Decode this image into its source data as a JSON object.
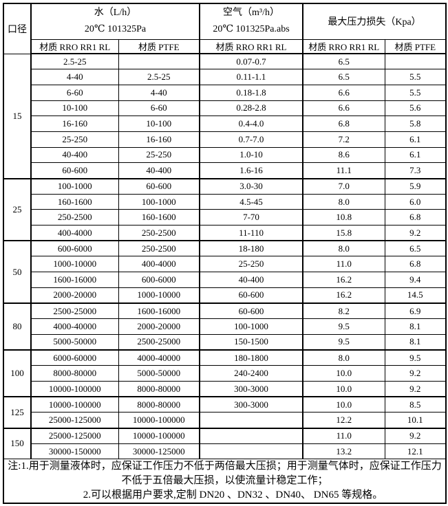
{
  "page": {
    "background_color": "#ffffff",
    "line_color": "#000000",
    "text_color": "#000000"
  },
  "table": {
    "header": {
      "diameter_label": "口径",
      "water": {
        "title": "水（L/h）",
        "subtitle": "20℃ 101325Pa"
      },
      "air": {
        "title": "空气（m³/h）",
        "subtitle": "20℃ 101325Pa.abs"
      },
      "pressure": {
        "title": "最大压力损失（Kpa）"
      },
      "materials": [
        "材质 RRO RR1 RL",
        "材质 PTFE",
        "材质 RRO RR1 RL",
        "材质 RRO RR1 RL",
        "材质 PTFE"
      ]
    },
    "sections": [
      {
        "dn": "15",
        "rows": [
          [
            "2.5-25",
            "",
            "0.07-0.7",
            "6.5",
            ""
          ],
          [
            "4-40",
            "2.5-25",
            "0.11-1.1",
            "6.5",
            "5.5"
          ],
          [
            "6-60",
            "4-40",
            "0.18-1.8",
            "6.6",
            "5.5"
          ],
          [
            "10-100",
            "6-60",
            "0.28-2.8",
            "6.6",
            "5.6"
          ],
          [
            "16-160",
            "10-100",
            "0.4-4.0",
            "6.8",
            "5.8"
          ],
          [
            "25-250",
            "16-160",
            "0.7-7.0",
            "7.2",
            "6.1"
          ],
          [
            "40-400",
            "25-250",
            "1.0-10",
            "8.6",
            "6.1"
          ],
          [
            "60-600",
            "40-400",
            "1.6-16",
            "11.1",
            "7.3"
          ]
        ]
      },
      {
        "dn": "25",
        "rows": [
          [
            "100-1000",
            "60-600",
            "3.0-30",
            "7.0",
            "5.9"
          ],
          [
            "160-1600",
            "100-1000",
            "4.5-45",
            "8.0",
            "6.0"
          ],
          [
            "250-2500",
            "160-1600",
            "7-70",
            "10.8",
            "6.8"
          ],
          [
            "400-4000",
            "250-2500",
            "11-110",
            "15.8",
            "9.2"
          ]
        ]
      },
      {
        "dn": "50",
        "rows": [
          [
            "600-6000",
            "250-2500",
            "18-180",
            "8.0",
            "6.5"
          ],
          [
            "1000-10000",
            "400-4000",
            "25-250",
            "11.0",
            "6.8"
          ],
          [
            "1600-16000",
            "600-6000",
            "40-400",
            "16.2",
            "9.4"
          ],
          [
            "2000-20000",
            "1000-10000",
            "60-600",
            "16.2",
            "14.5"
          ]
        ]
      },
      {
        "dn": "80",
        "rows": [
          [
            "2500-25000",
            "1600-16000",
            "60-600",
            "8.2",
            "6.9"
          ],
          [
            "4000-40000",
            "2000-20000",
            "100-1000",
            "9.5",
            "8.1"
          ],
          [
            "5000-50000",
            "2500-25000",
            "150-1500",
            "9.5",
            "8.1"
          ]
        ]
      },
      {
        "dn": "100",
        "rows": [
          [
            "6000-60000",
            "4000-40000",
            "180-1800",
            "8.0",
            "9.5"
          ],
          [
            "8000-80000",
            "5000-50000",
            "240-2400",
            "10.0",
            "9.2"
          ],
          [
            "10000-100000",
            "8000-80000",
            "300-3000",
            "10.0",
            "9.2"
          ]
        ]
      },
      {
        "dn": "125",
        "rows": [
          [
            "10000-100000",
            "8000-80000",
            "300-3000",
            "10.0",
            "8.5"
          ],
          [
            "25000-125000",
            "10000-100000",
            "",
            "12.2",
            "10.1"
          ]
        ]
      },
      {
        "dn": "150",
        "rows": [
          [
            "25000-125000",
            "10000-100000",
            "",
            "11.0",
            "9.2"
          ],
          [
            "30000-150000",
            "30000-125000",
            "",
            "13.2",
            "12.1"
          ]
        ]
      }
    ],
    "notes": [
      "注:1.用于测量液体时，应保证工作压力不低于两倍最大压损；用于测量气体时，应保证工作压力",
      "不低于五倍最大压损，以使流量计稳定工作；",
      "2.可以根据用户要求,定制 DN20 、DN32 、DN40、 DN65 等规格。"
    ]
  }
}
